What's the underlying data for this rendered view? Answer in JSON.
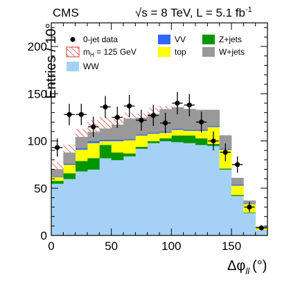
{
  "chart_data": {
    "type": "bar",
    "subtype": "stacked-histogram-with-data-points",
    "header_left": "CMS",
    "header_right_prefix": "√s = 8 TeV, L = 5.1 fb",
    "header_right_exponent": "-1",
    "xlabel_main": "Δφ",
    "xlabel_sub": "ll",
    "xlabel_unit": "(°)",
    "ylabel": "Entries / 10°",
    "xlim": [
      0,
      180
    ],
    "ylim": [
      0,
      225
    ],
    "x_ticks": [
      "0",
      "50",
      "100",
      "150"
    ],
    "y_ticks": [
      "0",
      "50",
      "100",
      "150",
      "200"
    ],
    "bin_edges": [
      0,
      10,
      20,
      30,
      40,
      50,
      60,
      70,
      80,
      90,
      100,
      110,
      120,
      130,
      140,
      150,
      160,
      170,
      180
    ],
    "stack_order": [
      "WW",
      "Z+jets",
      "top",
      "VV",
      "W+jets",
      "H125"
    ],
    "series": [
      {
        "name": "WW",
        "key": "WW",
        "color": "#a6d1f7",
        "values": [
          55,
          60,
          68,
          70,
          82,
          80,
          84,
          92,
          98,
          100,
          99,
          98,
          96,
          95,
          70,
          42,
          24,
          6
        ]
      },
      {
        "name": "Z+jets",
        "key": "Z+jets",
        "color": "#009600",
        "values": [
          3,
          6,
          11,
          12,
          14,
          8,
          3,
          2,
          2,
          3,
          7,
          8,
          7,
          2,
          1,
          1,
          0.5,
          0
        ]
      },
      {
        "name": "top",
        "key": "top",
        "color": "#ffff00",
        "values": [
          4,
          9,
          12,
          16,
          4,
          12,
          14,
          12,
          8,
          6,
          6,
          5,
          8,
          18,
          20,
          10,
          9,
          2
        ]
      },
      {
        "name": "VV",
        "key": "VV",
        "color": "#3366ff",
        "values": [
          0.5,
          1,
          1.5,
          2,
          1.5,
          1.5,
          1,
          1,
          1,
          1,
          1,
          1,
          1,
          1,
          1,
          1,
          0.5,
          0
        ]
      },
      {
        "name": "W+jets",
        "key": "W+jets",
        "color": "#999999",
        "values": [
          8,
          12,
          12,
          10,
          12,
          16,
          22,
          18,
          20,
          24,
          23,
          22,
          21,
          17,
          14,
          7,
          3,
          1.5
        ]
      },
      {
        "name": "m_H = 125 GeV",
        "key": "H125",
        "color": "#e03020",
        "hatched": true,
        "values": [
          7,
          8,
          8,
          12,
          12,
          6,
          6,
          4,
          6,
          3,
          1,
          0,
          0,
          0,
          0,
          0,
          0,
          0
        ]
      }
    ],
    "data_points": {
      "name": "0-jet data",
      "x": [
        5,
        15,
        25,
        35,
        45,
        55,
        65,
        75,
        85,
        95,
        105,
        115,
        125,
        135,
        145,
        155,
        165,
        175
      ],
      "y": [
        93,
        128,
        128,
        115,
        136,
        125,
        137,
        122,
        127,
        119,
        140,
        138,
        120,
        100,
        88,
        75,
        30,
        8
      ]
    },
    "legend": [
      {
        "label": "0-jet data",
        "marker": "point",
        "color": "#000000"
      },
      {
        "label": "VV",
        "marker": "box",
        "color": "#3366ff"
      },
      {
        "label": "Z+jets",
        "marker": "box",
        "color": "#009600"
      },
      {
        "label_main": "m",
        "label_sub": "H",
        "label_rest": " = 125 GeV",
        "marker": "hatch",
        "color": "#e03020"
      },
      {
        "label": "top",
        "marker": "box",
        "color": "#ffff00"
      },
      {
        "label": "W+jets",
        "marker": "box",
        "color": "#999999"
      },
      {
        "label": "WW",
        "marker": "box",
        "color": "#a6d1f7"
      }
    ],
    "legend_position": "top"
  }
}
